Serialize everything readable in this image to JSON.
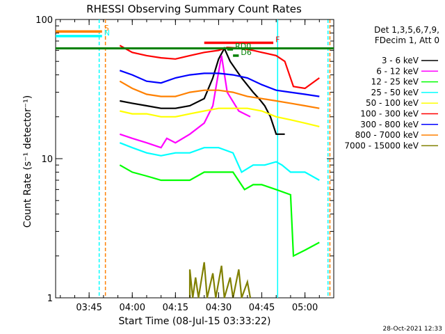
{
  "chart_data": {
    "type": "line",
    "title": "RHESSI Observing Summary Count Rates",
    "xlabel": "Start Time (08-Jul-15 03:33:22)",
    "ylabel": "Count Rate (s⁻¹ detector⁻¹)",
    "x_scale": "time",
    "x_range": [
      "03:33:22",
      "05:10:00"
    ],
    "y_scale": "log",
    "y_range": [
      1,
      100
    ],
    "x_ticks": [
      "03:45",
      "04:00",
      "04:15",
      "04:30",
      "04:45",
      "05:00"
    ],
    "y_ticks": [
      1,
      10,
      100
    ],
    "footer_date": "28-Oct-2021 12:33",
    "legend": {
      "header_lines": [
        "Det 1,3,5,6,7,9,",
        "FDecim 1, Att 0"
      ],
      "placement": "right"
    },
    "series": [
      {
        "name": "3 - 6 keV",
        "color": "#000000",
        "points": [
          [
            "03:55:40",
            26
          ],
          [
            "04:00",
            25
          ],
          [
            "04:05",
            24
          ],
          [
            "04:10",
            23
          ],
          [
            "04:15",
            23
          ],
          [
            "04:20",
            24
          ],
          [
            "04:25",
            27
          ],
          [
            "04:28",
            38
          ],
          [
            "04:30",
            52
          ],
          [
            "04:32",
            62
          ],
          [
            "04:34",
            50
          ],
          [
            "04:38",
            38
          ],
          [
            "04:42",
            30
          ],
          [
            "04:44",
            27
          ],
          [
            "04:46",
            24
          ],
          [
            "04:48",
            20
          ],
          [
            "04:50",
            15
          ],
          [
            "04:53",
            15
          ]
        ]
      },
      {
        "name": "6 - 12 keV",
        "color": "#ff00ff",
        "points": [
          [
            "03:55:40",
            15
          ],
          [
            "04:00",
            14
          ],
          [
            "04:05",
            13
          ],
          [
            "04:10",
            12
          ],
          [
            "04:12",
            14
          ],
          [
            "04:15",
            13
          ],
          [
            "04:20",
            15
          ],
          [
            "04:25",
            18
          ],
          [
            "04:28",
            24
          ],
          [
            "04:30",
            42
          ],
          [
            "04:31",
            55
          ],
          [
            "04:33",
            30
          ],
          [
            "04:37",
            22
          ],
          [
            "04:41",
            20
          ]
        ]
      },
      {
        "name": "12 - 25 keV",
        "color": "#00ff00",
        "points": [
          [
            "03:55:40",
            9
          ],
          [
            "04:00",
            8
          ],
          [
            "04:05",
            7.5
          ],
          [
            "04:10",
            7
          ],
          [
            "04:15",
            7
          ],
          [
            "04:20",
            7
          ],
          [
            "04:25",
            8
          ],
          [
            "04:30",
            8
          ],
          [
            "04:35",
            8
          ],
          [
            "04:39",
            6
          ],
          [
            "04:42",
            6.5
          ],
          [
            "04:45",
            6.5
          ],
          [
            "04:50",
            6
          ],
          [
            "04:55",
            5.5
          ],
          [
            "04:56",
            2
          ],
          [
            "05:00",
            2.2
          ],
          [
            "05:05",
            2.5
          ]
        ]
      },
      {
        "name": "25 - 50 keV",
        "color": "#00ffff",
        "points": [
          [
            "03:55:40",
            13
          ],
          [
            "04:00",
            12
          ],
          [
            "04:05",
            11
          ],
          [
            "04:10",
            10.5
          ],
          [
            "04:15",
            11
          ],
          [
            "04:20",
            11
          ],
          [
            "04:25",
            12
          ],
          [
            "04:30",
            12
          ],
          [
            "04:35",
            11
          ],
          [
            "04:38",
            8
          ],
          [
            "04:42",
            9
          ],
          [
            "04:46",
            9
          ],
          [
            "04:50",
            9.5
          ],
          [
            "04:52",
            9
          ],
          [
            "04:55",
            8
          ],
          [
            "05:00",
            8
          ],
          [
            "05:05",
            7
          ]
        ]
      },
      {
        "name": "50 - 100 keV",
        "color": "#ffff00",
        "points": [
          [
            "03:55:40",
            22
          ],
          [
            "04:00",
            21
          ],
          [
            "04:05",
            21
          ],
          [
            "04:10",
            20
          ],
          [
            "04:15",
            20
          ],
          [
            "04:20",
            21
          ],
          [
            "04:25",
            22
          ],
          [
            "04:30",
            23
          ],
          [
            "04:35",
            23
          ],
          [
            "04:40",
            23
          ],
          [
            "04:45",
            22
          ],
          [
            "04:50",
            20
          ],
          [
            "04:55",
            19
          ],
          [
            "05:00",
            18
          ],
          [
            "05:05",
            17
          ]
        ]
      },
      {
        "name": "100 - 300 keV",
        "color": "#ff0000",
        "points": [
          [
            "03:55:40",
            65
          ],
          [
            "04:00",
            58
          ],
          [
            "04:05",
            55
          ],
          [
            "04:10",
            53
          ],
          [
            "04:15",
            52
          ],
          [
            "04:20",
            55
          ],
          [
            "04:25",
            58
          ],
          [
            "04:30",
            60
          ],
          [
            "04:33",
            63
          ],
          [
            "04:38",
            62
          ],
          [
            "04:42",
            60
          ],
          [
            "04:45",
            58
          ],
          [
            "04:50",
            55
          ],
          [
            "04:53",
            50
          ],
          [
            "04:56",
            33
          ],
          [
            "05:00",
            32
          ],
          [
            "05:05",
            38
          ]
        ]
      },
      {
        "name": "300 - 800 keV",
        "color": "#0000ff",
        "points": [
          [
            "03:55:40",
            43
          ],
          [
            "04:00",
            40
          ],
          [
            "04:05",
            36
          ],
          [
            "04:10",
            35
          ],
          [
            "04:15",
            38
          ],
          [
            "04:20",
            40
          ],
          [
            "04:25",
            41
          ],
          [
            "04:30",
            41
          ],
          [
            "04:35",
            40
          ],
          [
            "04:40",
            38
          ],
          [
            "04:45",
            34
          ],
          [
            "04:50",
            31
          ],
          [
            "04:55",
            30
          ],
          [
            "05:00",
            29
          ],
          [
            "05:05",
            28
          ]
        ]
      },
      {
        "name": "800 - 7000 keV",
        "color": "#ff8000",
        "points": [
          [
            "03:55:40",
            36
          ],
          [
            "04:00",
            32
          ],
          [
            "04:05",
            29
          ],
          [
            "04:10",
            28
          ],
          [
            "04:15",
            28
          ],
          [
            "04:20",
            30
          ],
          [
            "04:25",
            31
          ],
          [
            "04:30",
            31
          ],
          [
            "04:35",
            30
          ],
          [
            "04:40",
            28
          ],
          [
            "04:45",
            27
          ],
          [
            "04:50",
            26
          ],
          [
            "04:55",
            25
          ],
          [
            "05:00",
            24
          ],
          [
            "05:05",
            23
          ]
        ]
      },
      {
        "name": "7000 - 15000 keV",
        "color": "#808000",
        "points": [
          [
            "04:20",
            1
          ],
          [
            "04:20",
            1.6
          ],
          [
            "04:21",
            1
          ],
          [
            "04:22",
            1.4
          ],
          [
            "04:23",
            1
          ],
          [
            "04:25",
            1.8
          ],
          [
            "04:26",
            1
          ],
          [
            "04:28",
            1.5
          ],
          [
            "04:29",
            1
          ],
          [
            "04:31",
            1.7
          ],
          [
            "04:32",
            1
          ],
          [
            "04:34",
            1.4
          ],
          [
            "04:35",
            1
          ],
          [
            "04:37",
            1.6
          ],
          [
            "04:38",
            1
          ],
          [
            "04:40",
            1.3
          ],
          [
            "04:41",
            1
          ]
        ]
      }
    ],
    "flag_bars": [
      {
        "label": "S",
        "color": "#ff8000",
        "x_start": "03:33:22",
        "x_end": "03:49:30",
        "level": 82
      },
      {
        "label": "N",
        "color": "#00ffff",
        "x_start": "03:33:22",
        "x_end": "03:49:30",
        "level": 76
      },
      {
        "label": "F",
        "color": "#ff0000",
        "x_start": "04:25",
        "x_end": "04:49",
        "level": 68
      },
      {
        "label": "RD0",
        "color": "#008000",
        "x_start": "04:33",
        "x_end": "04:35",
        "level": 61
      },
      {
        "label": "D6",
        "color": "#008000",
        "x_start": "04:35",
        "x_end": "04:37",
        "level": 55
      },
      {
        "label": "",
        "color": "#008000",
        "x_start": "03:33:22",
        "x_end": "05:10:00",
        "level": 62
      }
    ],
    "vertical_lines": [
      {
        "color": "#00ffff",
        "x": "03:48:30",
        "style": "dashed"
      },
      {
        "color": "#ff8000",
        "x": "03:50:40",
        "style": "dashed"
      },
      {
        "color": "#00ffff",
        "x": "04:50:30",
        "style": "solid"
      },
      {
        "color": "#00ffff",
        "x": "05:08:00",
        "style": "dashed"
      },
      {
        "color": "#ff8000",
        "x": "05:08:40",
        "style": "dashed"
      }
    ]
  }
}
